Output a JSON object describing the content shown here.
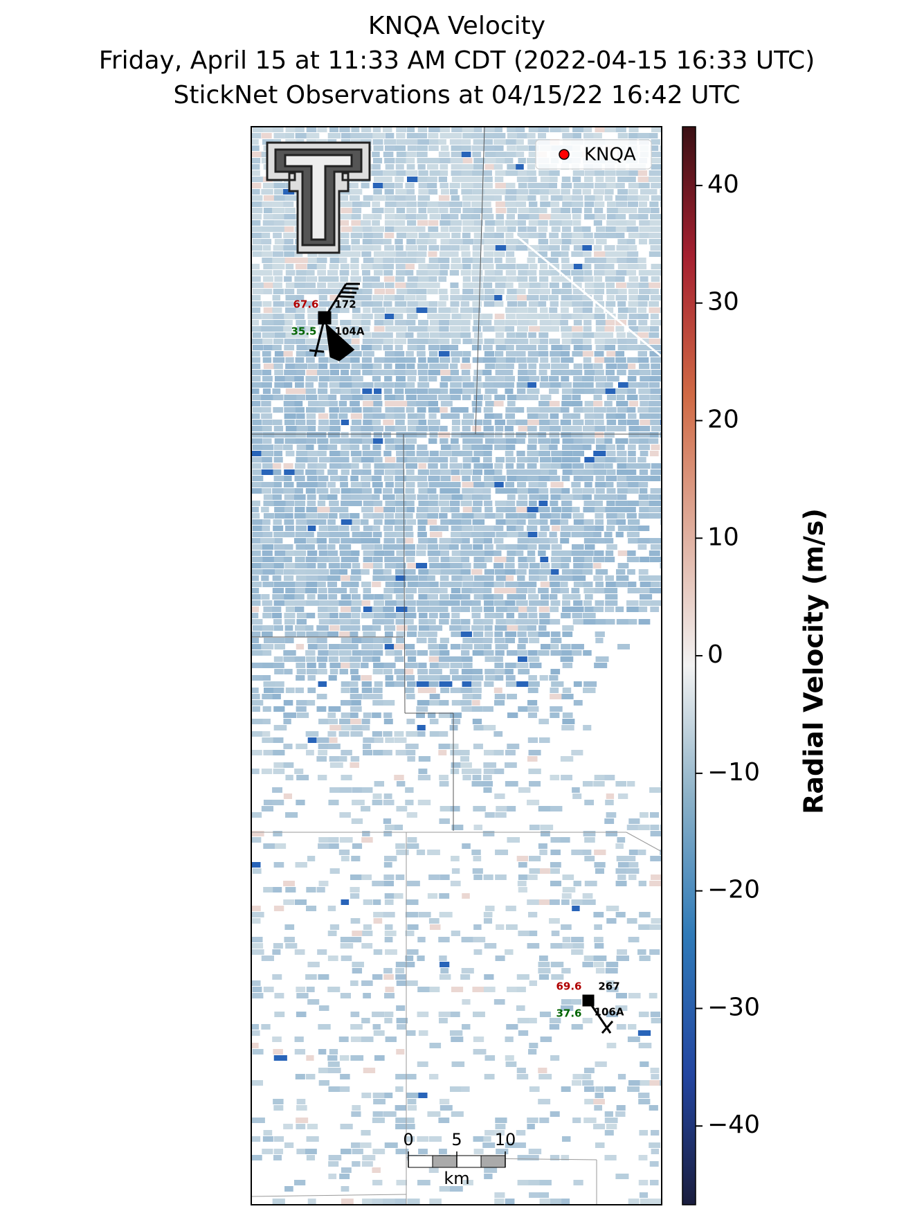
{
  "header": {
    "title": "KNQA Velocity",
    "time": "Friday, April 15 at 11:33 AM CDT (2022-04-15 16:33 UTC)",
    "observations": "StickNet Observations at 04/15/22 16:42 UTC"
  },
  "legend": {
    "label": "KNQA",
    "color": "#ff0000"
  },
  "stations": [
    {
      "temp": "67.6",
      "dir": "172",
      "dew": "35.5",
      "id": "104A"
    },
    {
      "temp": "69.6",
      "dir": "267",
      "dew": "37.6",
      "id": "106A"
    }
  ],
  "scalebar": {
    "ticks": [
      0,
      5,
      10
    ],
    "unit": "km"
  },
  "colorbar": {
    "label": "Radial Velocity (m/s)",
    "lim": [
      -46.7,
      45
    ],
    "ticks": [
      {
        "value": -40,
        "label": "−40"
      },
      {
        "value": -30,
        "label": "−30"
      },
      {
        "value": -20,
        "label": "−20"
      },
      {
        "value": -10,
        "label": "−10"
      },
      0,
      10,
      20,
      30,
      40
    ]
  }
}
